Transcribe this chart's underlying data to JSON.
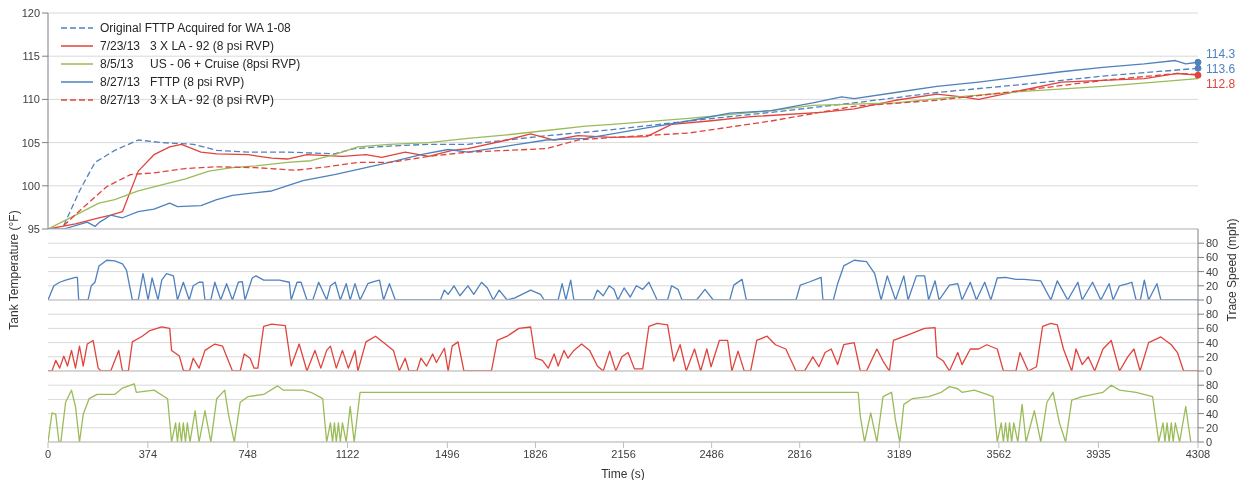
{
  "chart_data": [
    {
      "type": "line",
      "ylabel": "Tank Temperature (°F)",
      "xlim": [
        0,
        4308
      ],
      "xticks": [
        0,
        374,
        748,
        1122,
        1496,
        1826,
        2156,
        2486,
        2816,
        3189,
        3562,
        3935,
        4308
      ],
      "ylim": [
        95,
        120
      ],
      "yticks": [
        95,
        100,
        105,
        110,
        115,
        120
      ],
      "grid": "y",
      "legend": "top left",
      "tick_labels": "y",
      "series": [
        {
          "name": "Original FTTP Acquired for WA 1-08",
          "color": "#4f81bd",
          "line_style": "dashed",
          "x": [
            59,
            118,
            176,
            250,
            338,
            426,
            544,
            632,
            750,
            897,
            1073,
            1147,
            1279,
            1426,
            1573,
            1720,
            1867,
            2014,
            2114,
            2399,
            2709,
            3020,
            3330,
            3641,
            3952,
            4308
          ],
          "values": [
            95.4,
            99.4,
            102.7,
            104.1,
            105.3,
            105.0,
            104.8,
            104.1,
            103.9,
            103.9,
            103.7,
            104.3,
            104.6,
            104.8,
            104.8,
            105.3,
            105.8,
            106.2,
            106.5,
            107.5,
            108.5,
            109.6,
            110.8,
            111.7,
            112.7,
            113.6
          ],
          "value_labels": [
            null,
            null,
            null,
            null,
            null,
            null,
            null,
            null,
            null,
            null,
            null,
            null,
            null,
            null,
            null,
            null,
            null,
            null,
            null,
            null,
            null,
            null,
            null,
            null,
            null,
            "113.6"
          ]
        },
        {
          "name": "7/23/13   3 X LA - 92 (8 psi RVP)",
          "color": "#e0443c",
          "line_style": "solid",
          "x": [
            0,
            103,
            191,
            235,
            279,
            338,
            397,
            456,
            500,
            573,
            632,
            750,
            838,
            897,
            970,
            1044,
            1103,
            1191,
            1250,
            1338,
            1426,
            1514,
            1573,
            1720,
            1808,
            1896,
            1985,
            2114,
            2243,
            2336,
            2476,
            2632,
            2896,
            3020,
            3175,
            3330,
            3424,
            3486,
            3641,
            3796,
            3952,
            4107,
            4231,
            4308
          ],
          "values": [
            95,
            95.6,
            96.3,
            96.6,
            97.0,
            101.7,
            103.6,
            104.5,
            104.8,
            103.9,
            103.7,
            103.6,
            103.2,
            103.1,
            103.6,
            103.5,
            103.4,
            103.6,
            103.3,
            103.9,
            103.4,
            104.1,
            104.3,
            105.3,
            106.0,
            105.3,
            105.8,
            105.6,
            105.7,
            107.1,
            107.5,
            108.0,
            108.5,
            108.9,
            109.9,
            110.6,
            110.3,
            110.0,
            111.0,
            112.0,
            112.2,
            112.4,
            113.0,
            112.8
          ],
          "value_labels": [
            null,
            null,
            null,
            null,
            null,
            null,
            null,
            null,
            null,
            null,
            null,
            null,
            null,
            null,
            null,
            null,
            null,
            null,
            null,
            null,
            null,
            null,
            null,
            null,
            null,
            null,
            null,
            null,
            null,
            null,
            null,
            null,
            null,
            null,
            null,
            null,
            null,
            null,
            null,
            null,
            null,
            null,
            null,
            "112.8"
          ]
        },
        {
          "name": "8/5/13     US - 06 + Cruise (8psi RVP)",
          "color": "#9bbb59",
          "line_style": "solid",
          "x": [
            0,
            103,
            191,
            250,
            338,
            426,
            515,
            603,
            691,
            779,
            897,
            985,
            1073,
            1161,
            1279,
            1426,
            1573,
            1720,
            1867,
            2014,
            2114,
            2399,
            2709,
            2865,
            3175,
            3330,
            3641,
            3952,
            4308
          ],
          "values": [
            95,
            96.6,
            98.0,
            98.4,
            99.4,
            100.1,
            100.8,
            101.7,
            102.1,
            102.3,
            102.7,
            102.9,
            103.6,
            104.5,
            104.8,
            105.0,
            105.5,
            105.9,
            106.4,
            106.9,
            107.1,
            107.8,
            108.7,
            109.3,
            109.6,
            110.1,
            110.9,
            111.5,
            112.4
          ]
        },
        {
          "name": "8/27/13   FTTP (8 psi RVP)",
          "color": "#4f81bd",
          "line_style": "solid",
          "x": [
            0,
            59,
            147,
            176,
            194,
            235,
            279,
            338,
            397,
            456,
            485,
            573,
            632,
            691,
            838,
            955,
            1073,
            1191,
            1279,
            1397,
            1499,
            1573,
            1720,
            1867,
            2014,
            2114,
            2243,
            2399,
            2554,
            2709,
            2865,
            2973,
            3020,
            3175,
            3330,
            3486,
            3641,
            3796,
            3952,
            4107,
            4223,
            4262,
            4308
          ],
          "values": [
            95,
            95,
            95.8,
            95.3,
            95.8,
            96.6,
            96.3,
            97.0,
            97.3,
            98.0,
            97.6,
            97.7,
            98.4,
            98.9,
            99.4,
            100.6,
            101.3,
            102.1,
            102.7,
            103.6,
            104.2,
            103.9,
            104.6,
            105.3,
            105.5,
            106.0,
            106.7,
            107.5,
            108.4,
            108.7,
            109.6,
            110.3,
            110.1,
            110.8,
            111.5,
            112.0,
            112.6,
            113.2,
            113.7,
            114.1,
            114.5,
            114.1,
            114.3
          ],
          "value_labels": [
            null,
            null,
            null,
            null,
            null,
            null,
            null,
            null,
            null,
            null,
            null,
            null,
            null,
            null,
            null,
            null,
            null,
            null,
            null,
            null,
            null,
            null,
            null,
            null,
            null,
            null,
            null,
            null,
            null,
            null,
            null,
            null,
            null,
            null,
            null,
            null,
            null,
            null,
            null,
            null,
            null,
            null,
            "114.3"
          ]
        },
        {
          "name": "8/27/13   3 X LA - 92 (8 psi RVP)",
          "color": "#e0443c",
          "line_style": "dashed",
          "x": [
            59,
            132,
            220,
            309,
            397,
            515,
            632,
            779,
            926,
            1044,
            1161,
            1279,
            1426,
            1573,
            1720,
            1867,
            1985,
            2114,
            2399,
            2709,
            3020,
            3330,
            3641,
            3952,
            4231,
            4308
          ],
          "values": [
            95.4,
            97.5,
            99.9,
            101.3,
            101.5,
            102.0,
            102.2,
            102.1,
            101.8,
            102.2,
            102.7,
            102.7,
            103.4,
            103.9,
            104.1,
            104.3,
            105.3,
            105.6,
            106.1,
            107.5,
            109.2,
            109.9,
            111.0,
            112.2,
            113.0,
            112.9
          ]
        }
      ]
    },
    {
      "type": "line",
      "y2label": "Trace Speed (mph)",
      "xlim": [
        0,
        4308
      ],
      "xticks": [
        0,
        374,
        748,
        1122,
        1496,
        1826,
        2156,
        2486,
        2816,
        3189,
        3562,
        3935,
        4308
      ],
      "y2lim": [
        0,
        100
      ],
      "y2ticks": [
        0,
        20,
        40,
        60,
        80
      ],
      "grid": "y",
      "tick_labels": "y",
      "series": [
        {
          "color": "#4f81bd",
          "axis": "y2",
          "x": [
            0,
            22,
            44,
            66,
            103,
            110,
            115,
            150,
            162,
            176,
            191,
            220,
            250,
            279,
            294,
            316,
            338,
            356,
            375,
            390,
            412,
            426,
            444,
            470,
            485,
            507,
            529,
            544,
            566,
            580,
            588,
            610,
            625,
            647,
            669,
            691,
            713,
            728,
            738,
            765,
            779,
            808,
            838,
            867,
            904,
            911,
            933,
            948,
            970,
            992,
            1014,
            1044,
            1058,
            1076,
            1095,
            1117,
            1132,
            1150,
            1169,
            1198,
            1220,
            1242,
            1257,
            1279,
            1301,
            1470,
            1485,
            1499,
            1521,
            1543,
            1573,
            1595,
            1624,
            1646,
            1668,
            1690,
            1720,
            1749,
            1808,
            1845,
            1859,
            1911,
            1926,
            1940,
            1958,
            1970,
            2043,
            2058,
            2080,
            2102,
            2120,
            2135,
            2158,
            2181,
            2204,
            2228,
            2251,
            2282,
            2321,
            2336,
            2360,
            2375,
            2430,
            2461,
            2492,
            2554,
            2569,
            2600,
            2616,
            2802,
            2818,
            2849,
            2896,
            2903,
            2942,
            2958,
            2981,
            3020,
            3066,
            3097,
            3121,
            3144,
            3175,
            3206,
            3222,
            3253,
            3284,
            3299,
            3323,
            3338,
            3377,
            3408,
            3424,
            3455,
            3478,
            3509,
            3532,
            3556,
            3587,
            3626,
            3657,
            3719,
            3757,
            3781,
            3820,
            3858,
            3874,
            3913,
            3944,
            3975,
            3990,
            4014,
            4045,
            4060,
            4076,
            4092,
            4107,
            4123,
            4154,
            4169,
            4308
          ],
          "values": [
            0,
            20,
            25,
            28,
            32,
            32,
            0,
            0,
            20,
            25,
            48,
            56,
            55,
            51,
            42,
            0,
            0,
            37,
            0,
            31,
            0,
            28,
            37,
            34,
            0,
            25,
            0,
            20,
            25,
            25,
            0,
            0,
            25,
            0,
            23,
            0,
            25,
            26,
            0,
            31,
            34,
            28,
            28,
            28,
            25,
            0,
            25,
            25,
            0,
            0,
            25,
            0,
            20,
            25,
            0,
            23,
            0,
            23,
            0,
            23,
            26,
            28,
            0,
            23,
            0,
            0,
            14,
            8,
            20,
            6,
            20,
            8,
            25,
            17,
            0,
            14,
            0,
            3,
            14,
            8,
            0,
            0,
            23,
            0,
            28,
            0,
            0,
            14,
            6,
            20,
            15,
            0,
            17,
            4,
            20,
            15,
            25,
            0,
            0,
            20,
            15,
            0,
            0,
            15,
            0,
            0,
            21,
            29,
            0,
            0,
            21,
            25,
            32,
            0,
            0,
            23,
            48,
            56,
            54,
            37,
            0,
            34,
            0,
            34,
            0,
            34,
            34,
            0,
            27,
            0,
            21,
            23,
            0,
            25,
            0,
            25,
            0,
            31,
            32,
            29,
            29,
            27,
            0,
            27,
            0,
            25,
            0,
            25,
            0,
            23,
            0,
            20,
            23,
            25,
            0,
            0,
            28,
            0,
            23,
            0,
            0
          ]
        }
      ]
    },
    {
      "type": "line",
      "xlim": [
        0,
        4308
      ],
      "xticks": [
        0,
        374,
        748,
        1122,
        1496,
        1826,
        2156,
        2486,
        2816,
        3189,
        3562,
        3935,
        4308
      ],
      "y2lim": [
        0,
        100
      ],
      "y2ticks": [
        0,
        20,
        40,
        60,
        80
      ],
      "grid": "y",
      "tick_labels": "y",
      "series": [
        {
          "color": "#e0443c",
          "axis": "y2",
          "x": [
            0,
            15,
            29,
            44,
            59,
            73,
            88,
            103,
            118,
            132,
            147,
            169,
            188,
            198,
            235,
            265,
            279,
            301,
            316,
            353,
            382,
            426,
            456,
            463,
            492,
            507,
            530,
            544,
            566,
            588,
            625,
            654,
            691,
            720,
            735,
            757,
            772,
            786,
            808,
            838,
            889,
            911,
            941,
            970,
            1000,
            1022,
            1044,
            1058,
            1080,
            1103,
            1125,
            1150,
            1161,
            1191,
            1227,
            1264,
            1294,
            1316,
            1338,
            1352,
            1382,
            1397,
            1418,
            1441,
            1455,
            1485,
            1499,
            1514,
            1536,
            1558,
            1661,
            1683,
            1720,
            1764,
            1808,
            1826,
            1852,
            1874,
            1896,
            1911,
            1933,
            1948,
            1970,
            1999,
            2029,
            2058,
            2080,
            2104,
            2127,
            2150,
            2173,
            2197,
            2228,
            2251,
            2282,
            2321,
            2344,
            2368,
            2391,
            2422,
            2445,
            2468,
            2484,
            2515,
            2546,
            2562,
            2585,
            2608,
            2632,
            2655,
            2694,
            2725,
            2764,
            2802,
            2834,
            2865,
            2888,
            2911,
            2934,
            2958,
            2981,
            3020,
            3043,
            3066,
            3105,
            3128,
            3152,
            3167,
            3222,
            3284,
            3323,
            3330,
            3354,
            3377,
            3408,
            3424,
            3455,
            3486,
            3517,
            3556,
            3579,
            3626,
            3641,
            3672,
            3703,
            3726,
            3757,
            3781,
            3804,
            3835,
            3851,
            3874,
            3897,
            3921,
            3952,
            3983,
            4014,
            4045,
            4068,
            4091,
            4123,
            4169,
            4208,
            4231,
            4254,
            4308
          ],
          "values": [
            0,
            0,
            15,
            4,
            21,
            7,
            29,
            4,
            35,
            7,
            38,
            43,
            4,
            0,
            0,
            29,
            0,
            0,
            41,
            49,
            57,
            62,
            60,
            29,
            21,
            1,
            0,
            18,
            4,
            29,
            38,
            35,
            0,
            0,
            24,
            18,
            4,
            4,
            63,
            66,
            64,
            7,
            38,
            0,
            29,
            4,
            29,
            35,
            4,
            29,
            4,
            29,
            0,
            41,
            49,
            38,
            29,
            0,
            18,
            0,
            0,
            18,
            7,
            24,
            12,
            32,
            0,
            35,
            41,
            0,
            0,
            43,
            49,
            60,
            62,
            18,
            15,
            4,
            24,
            7,
            29,
            18,
            29,
            38,
            29,
            7,
            0,
            28,
            0,
            20,
            26,
            3,
            3,
            63,
            67,
            65,
            14,
            37,
            0,
            31,
            0,
            31,
            6,
            43,
            43,
            0,
            28,
            0,
            0,
            43,
            49,
            37,
            31,
            0,
            0,
            20,
            6,
            26,
            31,
            9,
            37,
            40,
            0,
            0,
            31,
            14,
            0,
            43,
            51,
            60,
            61,
            20,
            14,
            0,
            26,
            9,
            31,
            31,
            37,
            31,
            0,
            0,
            26,
            0,
            6,
            63,
            67,
            65,
            31,
            0,
            31,
            9,
            20,
            0,
            31,
            43,
            0,
            20,
            31,
            0,
            40,
            48,
            37,
            26,
            0,
            0
          ]
        }
      ]
    },
    {
      "type": "line",
      "xlabel": "Time (s)",
      "xlim": [
        0,
        4308
      ],
      "xticks": [
        0,
        374,
        748,
        1122,
        1496,
        1826,
        2156,
        2486,
        2816,
        3189,
        3562,
        3935,
        4308
      ],
      "y2lim": [
        0,
        100
      ],
      "y2ticks": [
        0,
        20,
        40,
        60,
        80
      ],
      "grid": "y",
      "series": [
        {
          "color": "#9bbb59",
          "axis": "y2",
          "x": [
            0,
            15,
            29,
            41,
            48,
            66,
            88,
            103,
            118,
            132,
            154,
            184,
            250,
            279,
            323,
            331,
            397,
            448,
            463,
            478,
            485,
            492,
            500,
            507,
            515,
            522,
            532,
            551,
            566,
            588,
            610,
            632,
            662,
            676,
            698,
            720,
            750,
            808,
            860,
            882,
            955,
            985,
            1029,
            1044,
            1058,
            1066,
            1073,
            1080,
            1088,
            1095,
            1103,
            1117,
            1132,
            1147,
            1169,
            3035,
            3043,
            3059,
            3082,
            3105,
            3128,
            3160,
            3175,
            3191,
            3206,
            3237,
            3299,
            3346,
            3377,
            3408,
            3424,
            3470,
            3517,
            3540,
            3556,
            3571,
            3579,
            3587,
            3595,
            3602,
            3610,
            3618,
            3633,
            3649,
            3664,
            3695,
            3719,
            3742,
            3765,
            3789,
            3812,
            3835,
            3874,
            3952,
            3983,
            4014,
            4076,
            4138,
            4161,
            4177,
            4184,
            4192,
            4200,
            4208,
            4215,
            4223,
            4239,
            4262,
            4281
          ],
          "values": [
            0,
            41,
            39,
            0,
            0,
            56,
            73,
            50,
            0,
            39,
            61,
            67,
            67,
            76,
            82,
            70,
            73,
            61,
            0,
            27,
            0,
            27,
            0,
            27,
            0,
            27,
            0,
            44,
            0,
            44,
            0,
            61,
            73,
            39,
            0,
            56,
            64,
            67,
            79,
            73,
            73,
            70,
            61,
            0,
            27,
            0,
            27,
            0,
            27,
            0,
            27,
            0,
            50,
            0,
            70,
            70,
            36,
            0,
            41,
            0,
            64,
            70,
            30,
            0,
            53,
            61,
            64,
            70,
            78,
            75,
            70,
            73,
            67,
            64,
            0,
            27,
            0,
            27,
            0,
            27,
            0,
            27,
            0,
            53,
            0,
            44,
            0,
            56,
            70,
            27,
            0,
            59,
            64,
            70,
            80,
            73,
            70,
            64,
            0,
            27,
            0,
            27,
            0,
            27,
            0,
            27,
            0,
            50,
            0
          ]
        }
      ]
    }
  ]
}
